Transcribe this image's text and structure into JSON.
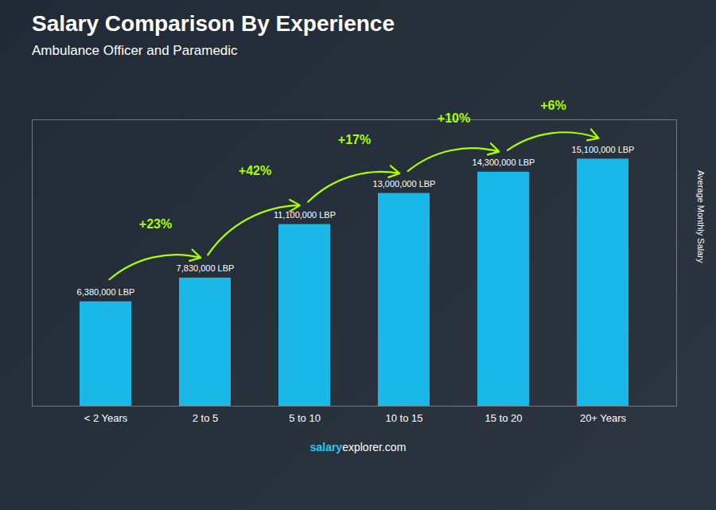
{
  "chart_data": {
    "type": "bar",
    "title": "Salary Comparison By Experience",
    "subtitle": "Ambulance Officer and Paramedic",
    "ylabel": "Average Monthly Salary",
    "categories": [
      "< 2 Years",
      "2 to 5",
      "5 to 10",
      "10 to 15",
      "15 to 20",
      "20+ Years"
    ],
    "values": [
      6380000,
      7830000,
      11100000,
      13000000,
      14300000,
      15100000
    ],
    "value_labels": [
      "6,380,000 LBP",
      "7,830,000 LBP",
      "11,100,000 LBP",
      "13,000,000 LBP",
      "14,300,000 LBP",
      "15,100,000 LBP"
    ],
    "data_labels": true,
    "color": "#1ab8e8",
    "ylim": [
      0,
      17500000
    ],
    "tick_labels": "x",
    "grid": false,
    "annotations": [
      {
        "text": "+23%",
        "from": "< 2 Years",
        "to": "2 to 5",
        "color": "#aaff00"
      },
      {
        "text": "+42%",
        "from": "2 to 5",
        "to": "5 to 10",
        "color": "#aaff00"
      },
      {
        "text": "+17%",
        "from": "5 to 10",
        "to": "10 to 15",
        "color": "#aaff00"
      },
      {
        "text": "+10%",
        "from": "10 to 15",
        "to": "15 to 20",
        "color": "#aaff00"
      },
      {
        "text": "+6%",
        "from": "15 to 20",
        "to": "20+ Years",
        "color": "#aaff00"
      }
    ],
    "caption": [
      {
        "text": "salary",
        "color": "#29c5f6"
      },
      {
        "text": "explorer.com",
        "color": "#ffffff"
      }
    ]
  }
}
